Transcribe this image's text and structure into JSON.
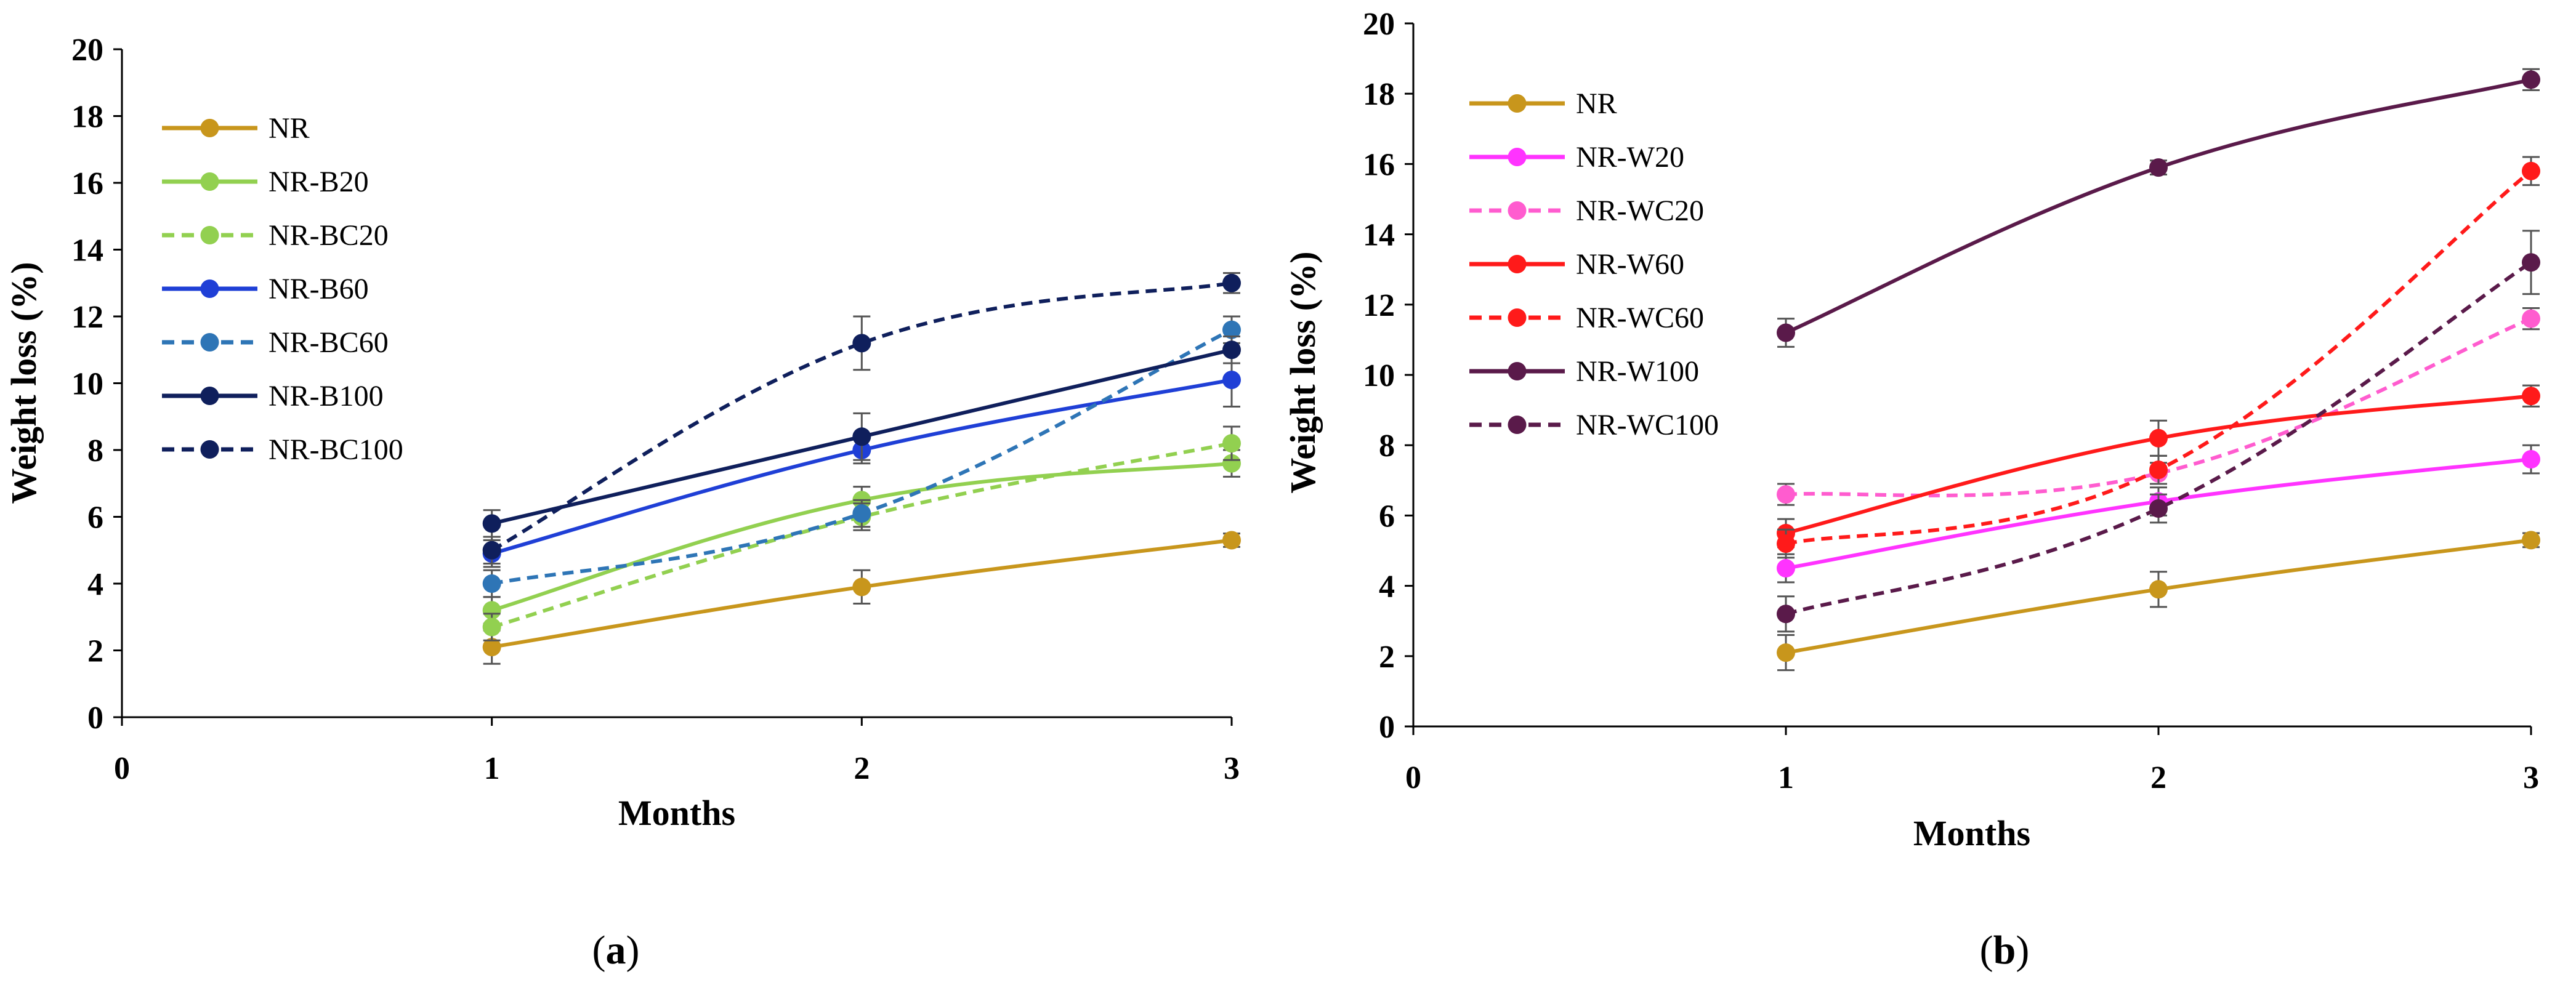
{
  "chart_data": [
    {
      "type": "line",
      "panel_label": "a",
      "xlabel": "Months",
      "ylabel": "Weight loss (%)",
      "xlim": [
        0,
        3
      ],
      "ylim": [
        0,
        20
      ],
      "xticks": [
        "0",
        "1",
        "2",
        "3"
      ],
      "yticks": [
        "0",
        "2",
        "4",
        "6",
        "8",
        "10",
        "12",
        "14",
        "16",
        "18",
        "20"
      ],
      "legend_position": "top-left",
      "x": [
        1,
        2,
        3
      ],
      "series": [
        {
          "name": "NR",
          "values": [
            2.1,
            3.9,
            5.3
          ],
          "errors": [
            0.5,
            0.5,
            0.2
          ],
          "color": "#c8961c",
          "dashed": false
        },
        {
          "name": "NR-B20",
          "values": [
            3.2,
            6.5,
            7.6
          ],
          "errors": [
            0.4,
            0.4,
            0.4
          ],
          "color": "#92d050",
          "dashed": false
        },
        {
          "name": "NR-BC20",
          "values": [
            2.7,
            6.0,
            8.2
          ],
          "errors": [
            0.4,
            0.4,
            0.5
          ],
          "color": "#92d050",
          "dashed": true
        },
        {
          "name": "NR-B60",
          "values": [
            4.9,
            8.0,
            10.1
          ],
          "errors": [
            0.4,
            0.4,
            0.8
          ],
          "color": "#1f3fd6",
          "dashed": false
        },
        {
          "name": "NR-BC60",
          "values": [
            4.0,
            6.1,
            11.6
          ],
          "errors": [
            0.4,
            0.4,
            0.4
          ],
          "color": "#2e75b6",
          "dashed": true
        },
        {
          "name": "NR-B100",
          "values": [
            5.8,
            8.4,
            11.0
          ],
          "errors": [
            0.4,
            0.7,
            0.4
          ],
          "color": "#0f1f5c",
          "dashed": false
        },
        {
          "name": "NR-BC100",
          "values": [
            5.0,
            11.2,
            13.0
          ],
          "errors": [
            0.4,
            0.8,
            0.3
          ],
          "color": "#0f1f5c",
          "dashed": true
        }
      ]
    },
    {
      "type": "line",
      "panel_label": "b",
      "xlabel": "Months",
      "ylabel": "Weight loss (%)",
      "xlim": [
        0,
        3
      ],
      "ylim": [
        0,
        20
      ],
      "xticks": [
        "0",
        "1",
        "2",
        "3"
      ],
      "yticks": [
        "0",
        "2",
        "4",
        "6",
        "8",
        "10",
        "12",
        "14",
        "16",
        "18",
        "20"
      ],
      "legend_position": "top-left",
      "x": [
        1,
        2,
        3
      ],
      "series": [
        {
          "name": "NR",
          "values": [
            2.1,
            3.9,
            5.3
          ],
          "errors": [
            0.5,
            0.5,
            0.2
          ],
          "color": "#c8961c",
          "dashed": false
        },
        {
          "name": "NR-W20",
          "values": [
            4.5,
            6.4,
            7.6
          ],
          "errors": [
            0.4,
            0.4,
            0.4
          ],
          "color": "#ff33ff",
          "dashed": false
        },
        {
          "name": "NR-WC20",
          "values": [
            6.6,
            7.2,
            11.6
          ],
          "errors": [
            0.3,
            0.3,
            0.3
          ],
          "color": "#ff5ccf",
          "dashed": true
        },
        {
          "name": "NR-W60",
          "values": [
            5.5,
            8.2,
            9.4
          ],
          "errors": [
            0.4,
            0.5,
            0.3
          ],
          "color": "#ff1a1a",
          "dashed": false
        },
        {
          "name": "NR-WC60",
          "values": [
            5.2,
            7.3,
            15.8
          ],
          "errors": [
            0.4,
            0.4,
            0.4
          ],
          "color": "#ff1a1a",
          "dashed": true
        },
        {
          "name": "NR-W100",
          "values": [
            11.2,
            15.9,
            18.4
          ],
          "errors": [
            0.4,
            0.2,
            0.3
          ],
          "color": "#5a1a4a",
          "dashed": false
        },
        {
          "name": "NR-WC100",
          "values": [
            3.2,
            6.2,
            13.2
          ],
          "errors": [
            0.5,
            0.4,
            0.9
          ],
          "color": "#5a1a4a",
          "dashed": true
        }
      ]
    }
  ]
}
